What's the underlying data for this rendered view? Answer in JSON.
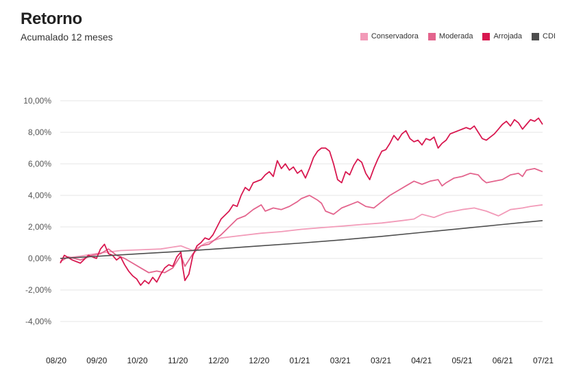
{
  "chart_data": {
    "type": "line",
    "title": "Retorno",
    "subtitle": "Acumalado 12 meses",
    "xlabel": "",
    "ylabel": "",
    "x_tick_labels": [
      "08/20",
      "09/20",
      "10/20",
      "11/20",
      "12/20",
      "12/20",
      "01/21",
      "03/21",
      "03/21",
      "04/21",
      "05/21",
      "06/21",
      "07/21"
    ],
    "y_ticks": [
      -4,
      -2,
      0,
      2,
      4,
      6,
      8,
      10
    ],
    "y_tick_labels": [
      "-4,00%",
      "-2,00%",
      "0,00%",
      "2,00%",
      "4,00%",
      "6,00%",
      "8,00%",
      "10,00%"
    ],
    "ylim": [
      -4,
      10
    ],
    "xlim": [
      0,
      12
    ],
    "grid": true,
    "legend_position": "top-right",
    "series": [
      {
        "name": "Conservadora",
        "color": "#f29ab8",
        "points": [
          [
            0,
            0
          ],
          [
            0.2,
            0.05
          ],
          [
            0.5,
            0.15
          ],
          [
            1,
            0.35
          ],
          [
            1.5,
            0.5
          ],
          [
            2,
            0.55
          ],
          [
            2.5,
            0.6
          ],
          [
            3,
            0.8
          ],
          [
            3.3,
            0.5
          ],
          [
            3.6,
            0.95
          ],
          [
            4,
            1.3
          ],
          [
            4.5,
            1.45
          ],
          [
            5,
            1.6
          ],
          [
            5.5,
            1.7
          ],
          [
            6,
            1.85
          ],
          [
            6.5,
            1.95
          ],
          [
            7,
            2.05
          ],
          [
            7.5,
            2.15
          ],
          [
            8,
            2.25
          ],
          [
            8.5,
            2.4
          ],
          [
            8.8,
            2.5
          ],
          [
            9,
            2.8
          ],
          [
            9.3,
            2.6
          ],
          [
            9.6,
            2.9
          ],
          [
            10,
            3.1
          ],
          [
            10.3,
            3.2
          ],
          [
            10.6,
            3.0
          ],
          [
            10.9,
            2.7
          ],
          [
            11.2,
            3.1
          ],
          [
            11.5,
            3.2
          ],
          [
            11.7,
            3.3
          ],
          [
            12,
            3.4
          ]
        ]
      },
      {
        "name": "Moderada",
        "color": "#e3648d",
        "points": [
          [
            0,
            -0.2
          ],
          [
            0.2,
            0.1
          ],
          [
            0.5,
            -0.1
          ],
          [
            0.8,
            0.2
          ],
          [
            1,
            0.3
          ],
          [
            1.2,
            0.6
          ],
          [
            1.4,
            0.2
          ],
          [
            1.6,
            0.0
          ],
          [
            1.8,
            -0.3
          ],
          [
            2,
            -0.6
          ],
          [
            2.2,
            -0.9
          ],
          [
            2.4,
            -0.8
          ],
          [
            2.6,
            -0.9
          ],
          [
            2.8,
            -0.6
          ],
          [
            3,
            0.2
          ],
          [
            3.1,
            -0.5
          ],
          [
            3.3,
            0.3
          ],
          [
            3.5,
            0.8
          ],
          [
            3.7,
            0.9
          ],
          [
            4,
            1.5
          ],
          [
            4.2,
            2.0
          ],
          [
            4.4,
            2.5
          ],
          [
            4.6,
            2.7
          ],
          [
            4.8,
            3.1
          ],
          [
            5,
            3.4
          ],
          [
            5.1,
            3.0
          ],
          [
            5.3,
            3.2
          ],
          [
            5.5,
            3.1
          ],
          [
            5.7,
            3.3
          ],
          [
            5.9,
            3.6
          ],
          [
            6,
            3.8
          ],
          [
            6.2,
            4.0
          ],
          [
            6.4,
            3.7
          ],
          [
            6.5,
            3.5
          ],
          [
            6.6,
            3.0
          ],
          [
            6.8,
            2.8
          ],
          [
            7,
            3.2
          ],
          [
            7.2,
            3.4
          ],
          [
            7.4,
            3.6
          ],
          [
            7.6,
            3.3
          ],
          [
            7.8,
            3.2
          ],
          [
            8,
            3.6
          ],
          [
            8.2,
            4.0
          ],
          [
            8.4,
            4.3
          ],
          [
            8.6,
            4.6
          ],
          [
            8.8,
            4.9
          ],
          [
            9,
            4.7
          ],
          [
            9.2,
            4.9
          ],
          [
            9.4,
            5.0
          ],
          [
            9.5,
            4.6
          ],
          [
            9.6,
            4.8
          ],
          [
            9.8,
            5.1
          ],
          [
            10,
            5.2
          ],
          [
            10.2,
            5.4
          ],
          [
            10.4,
            5.3
          ],
          [
            10.5,
            5.0
          ],
          [
            10.6,
            4.8
          ],
          [
            10.8,
            4.9
          ],
          [
            11,
            5.0
          ],
          [
            11.2,
            5.3
          ],
          [
            11.4,
            5.4
          ],
          [
            11.5,
            5.2
          ],
          [
            11.6,
            5.6
          ],
          [
            11.8,
            5.7
          ],
          [
            12,
            5.5
          ]
        ]
      },
      {
        "name": "Arrojada",
        "color": "#d8174f",
        "points": [
          [
            0,
            -0.3
          ],
          [
            0.1,
            0.2
          ],
          [
            0.3,
            -0.1
          ],
          [
            0.5,
            -0.3
          ],
          [
            0.7,
            0.2
          ],
          [
            0.9,
            0.0
          ],
          [
            1.0,
            0.6
          ],
          [
            1.1,
            0.9
          ],
          [
            1.2,
            0.3
          ],
          [
            1.3,
            0.2
          ],
          [
            1.4,
            -0.1
          ],
          [
            1.5,
            0.1
          ],
          [
            1.6,
            -0.4
          ],
          [
            1.7,
            -0.8
          ],
          [
            1.8,
            -1.1
          ],
          [
            1.9,
            -1.3
          ],
          [
            2.0,
            -1.7
          ],
          [
            2.1,
            -1.4
          ],
          [
            2.2,
            -1.6
          ],
          [
            2.3,
            -1.2
          ],
          [
            2.4,
            -1.5
          ],
          [
            2.5,
            -1.0
          ],
          [
            2.6,
            -0.6
          ],
          [
            2.7,
            -0.4
          ],
          [
            2.8,
            -0.5
          ],
          [
            2.9,
            0.1
          ],
          [
            3.0,
            0.4
          ],
          [
            3.05,
            -0.6
          ],
          [
            3.1,
            -1.4
          ],
          [
            3.2,
            -1.0
          ],
          [
            3.3,
            0.2
          ],
          [
            3.4,
            0.8
          ],
          [
            3.5,
            1.0
          ],
          [
            3.6,
            1.3
          ],
          [
            3.7,
            1.2
          ],
          [
            3.8,
            1.5
          ],
          [
            4.0,
            2.5
          ],
          [
            4.2,
            3.0
          ],
          [
            4.3,
            3.4
          ],
          [
            4.4,
            3.3
          ],
          [
            4.5,
            4.0
          ],
          [
            4.6,
            4.5
          ],
          [
            4.7,
            4.3
          ],
          [
            4.8,
            4.8
          ],
          [
            5.0,
            5.0
          ],
          [
            5.1,
            5.3
          ],
          [
            5.2,
            5.5
          ],
          [
            5.3,
            5.2
          ],
          [
            5.4,
            6.2
          ],
          [
            5.5,
            5.7
          ],
          [
            5.6,
            6.0
          ],
          [
            5.7,
            5.6
          ],
          [
            5.8,
            5.8
          ],
          [
            5.9,
            5.4
          ],
          [
            6.0,
            5.6
          ],
          [
            6.1,
            5.1
          ],
          [
            6.2,
            5.7
          ],
          [
            6.3,
            6.4
          ],
          [
            6.4,
            6.8
          ],
          [
            6.5,
            7.0
          ],
          [
            6.6,
            7.0
          ],
          [
            6.7,
            6.8
          ],
          [
            6.8,
            6.0
          ],
          [
            6.9,
            5.0
          ],
          [
            7.0,
            4.8
          ],
          [
            7.1,
            5.5
          ],
          [
            7.2,
            5.3
          ],
          [
            7.3,
            5.9
          ],
          [
            7.4,
            6.3
          ],
          [
            7.5,
            6.1
          ],
          [
            7.6,
            5.4
          ],
          [
            7.7,
            5.0
          ],
          [
            7.8,
            5.7
          ],
          [
            7.9,
            6.3
          ],
          [
            8.0,
            6.8
          ],
          [
            8.1,
            6.9
          ],
          [
            8.2,
            7.3
          ],
          [
            8.3,
            7.8
          ],
          [
            8.4,
            7.5
          ],
          [
            8.5,
            7.9
          ],
          [
            8.6,
            8.1
          ],
          [
            8.7,
            7.6
          ],
          [
            8.8,
            7.4
          ],
          [
            8.9,
            7.5
          ],
          [
            9.0,
            7.2
          ],
          [
            9.1,
            7.6
          ],
          [
            9.2,
            7.5
          ],
          [
            9.3,
            7.7
          ],
          [
            9.4,
            7.0
          ],
          [
            9.5,
            7.3
          ],
          [
            9.6,
            7.5
          ],
          [
            9.7,
            7.9
          ],
          [
            9.8,
            8.0
          ],
          [
            9.9,
            8.1
          ],
          [
            10.0,
            8.2
          ],
          [
            10.1,
            8.3
          ],
          [
            10.2,
            8.2
          ],
          [
            10.3,
            8.4
          ],
          [
            10.4,
            8.0
          ],
          [
            10.5,
            7.6
          ],
          [
            10.6,
            7.5
          ],
          [
            10.7,
            7.7
          ],
          [
            10.8,
            7.9
          ],
          [
            10.9,
            8.2
          ],
          [
            11.0,
            8.5
          ],
          [
            11.1,
            8.7
          ],
          [
            11.2,
            8.4
          ],
          [
            11.3,
            8.8
          ],
          [
            11.4,
            8.6
          ],
          [
            11.5,
            8.2
          ],
          [
            11.6,
            8.5
          ],
          [
            11.7,
            8.8
          ],
          [
            11.8,
            8.7
          ],
          [
            11.9,
            8.9
          ],
          [
            12.0,
            8.5
          ]
        ]
      },
      {
        "name": "CDI",
        "color": "#4d4d4d",
        "points": [
          [
            0,
            0
          ],
          [
            1,
            0.15
          ],
          [
            2,
            0.3
          ],
          [
            3,
            0.45
          ],
          [
            4,
            0.62
          ],
          [
            5,
            0.8
          ],
          [
            6,
            0.98
          ],
          [
            7,
            1.18
          ],
          [
            8,
            1.4
          ],
          [
            9,
            1.65
          ],
          [
            10,
            1.9
          ],
          [
            11,
            2.15
          ],
          [
            12,
            2.4
          ]
        ]
      }
    ]
  }
}
